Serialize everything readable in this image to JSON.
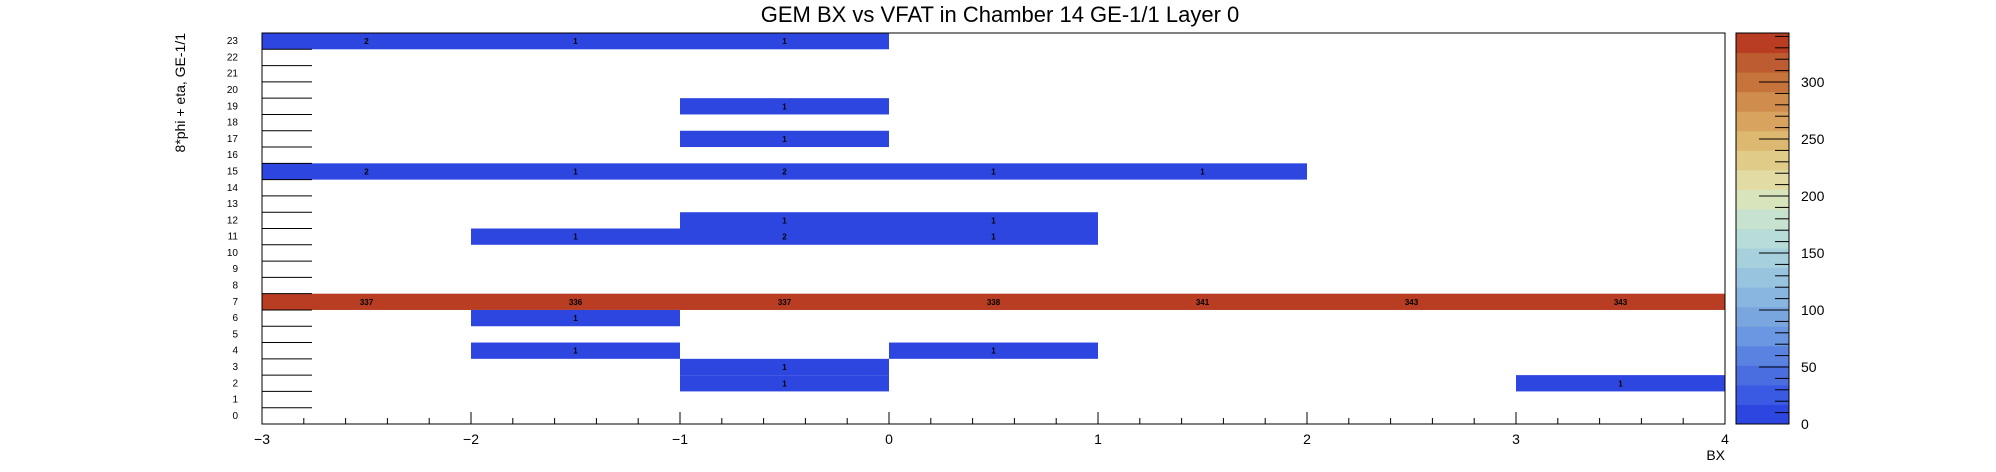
{
  "chart_data": {
    "type": "heatmap",
    "title": "GEM BX vs VFAT in Chamber 14 GE-1/1 Layer 0",
    "xlabel": "BX",
    "ylabel": "8*phi + eta, GE-1/1",
    "xlim": [
      -3,
      4
    ],
    "ylim": [
      0,
      24
    ],
    "x_ticks": [
      -3,
      -2,
      -1,
      0,
      1,
      2,
      3,
      4
    ],
    "x_tick_labels": [
      "−3",
      "−2",
      "−1",
      "0",
      "1",
      "2",
      "3",
      "4"
    ],
    "y_tick_labels": [
      "0",
      "1",
      "2",
      "3",
      "4",
      "5",
      "6",
      "7",
      "8",
      "9",
      "10",
      "11",
      "12",
      "13",
      "14",
      "15",
      "16",
      "17",
      "18",
      "19",
      "20",
      "21",
      "22",
      "23"
    ],
    "zlim": [
      0,
      343
    ],
    "z_ticks": [
      0,
      50,
      100,
      150,
      200,
      250,
      300
    ],
    "cells": [
      {
        "x": [
          -3,
          -2
        ],
        "y": 23,
        "value": 2,
        "label": "2"
      },
      {
        "x": [
          -2,
          -1
        ],
        "y": 23,
        "value": 1,
        "label": "1"
      },
      {
        "x": [
          -1,
          0
        ],
        "y": 23,
        "value": 1,
        "label": "1"
      },
      {
        "x": [
          -1,
          0
        ],
        "y": 19,
        "value": 1,
        "label": "1"
      },
      {
        "x": [
          -1,
          0
        ],
        "y": 17,
        "value": 1,
        "label": "1"
      },
      {
        "x": [
          -3,
          -2
        ],
        "y": 15,
        "value": 2,
        "label": "2"
      },
      {
        "x": [
          -2,
          -1
        ],
        "y": 15,
        "value": 1,
        "label": "1"
      },
      {
        "x": [
          -1,
          0
        ],
        "y": 15,
        "value": 2,
        "label": "2"
      },
      {
        "x": [
          0,
          1
        ],
        "y": 15,
        "value": 1,
        "label": "1"
      },
      {
        "x": [
          1,
          2
        ],
        "y": 15,
        "value": 1,
        "label": "1"
      },
      {
        "x": [
          -1,
          0
        ],
        "y": 12,
        "value": 1,
        "label": "1"
      },
      {
        "x": [
          0,
          1
        ],
        "y": 12,
        "value": 1,
        "label": "1"
      },
      {
        "x": [
          -2,
          -1
        ],
        "y": 11,
        "value": 1,
        "label": "1"
      },
      {
        "x": [
          -1,
          0
        ],
        "y": 11,
        "value": 2,
        "label": "2"
      },
      {
        "x": [
          0,
          1
        ],
        "y": 11,
        "value": 1,
        "label": "1"
      },
      {
        "x": [
          -3,
          -2
        ],
        "y": 7,
        "value": 337,
        "label": "337"
      },
      {
        "x": [
          -2,
          -1
        ],
        "y": 7,
        "value": 336,
        "label": "336"
      },
      {
        "x": [
          -1,
          0
        ],
        "y": 7,
        "value": 337,
        "label": "337"
      },
      {
        "x": [
          0,
          1
        ],
        "y": 7,
        "value": 338,
        "label": "338"
      },
      {
        "x": [
          1,
          2
        ],
        "y": 7,
        "value": 341,
        "label": "341"
      },
      {
        "x": [
          2,
          3
        ],
        "y": 7,
        "value": 343,
        "label": "343"
      },
      {
        "x": [
          3,
          4
        ],
        "y": 7,
        "value": 343,
        "label": "343"
      },
      {
        "x": [
          -2,
          -1
        ],
        "y": 6,
        "value": 1,
        "label": "1"
      },
      {
        "x": [
          -2,
          -1
        ],
        "y": 4,
        "value": 1,
        "label": "1"
      },
      {
        "x": [
          0,
          1
        ],
        "y": 4,
        "value": 1,
        "label": "1"
      },
      {
        "x": [
          -1,
          0
        ],
        "y": 3,
        "value": 1,
        "label": "1"
      },
      {
        "x": [
          -1,
          0
        ],
        "y": 2,
        "value": 1,
        "label": "1"
      },
      {
        "x": [
          3,
          4
        ],
        "y": 2,
        "value": 1,
        "label": "1"
      }
    ],
    "colors": {
      "low": "#2e46e0",
      "high": "#b83d22",
      "palette": [
        "#2e46e0",
        "#3a5ae4",
        "#4a6edf",
        "#5a82e0",
        "#6a96e2",
        "#7aa6e0",
        "#88b6e0",
        "#98c4e0",
        "#a6d0dc",
        "#b8dcd8",
        "#c8e2d0",
        "#d8e4bc",
        "#e2dca4",
        "#e0cc88",
        "#dcb870",
        "#d8a35e",
        "#d08c4c",
        "#c6743c",
        "#bc5c30",
        "#b83d22"
      ]
    }
  }
}
